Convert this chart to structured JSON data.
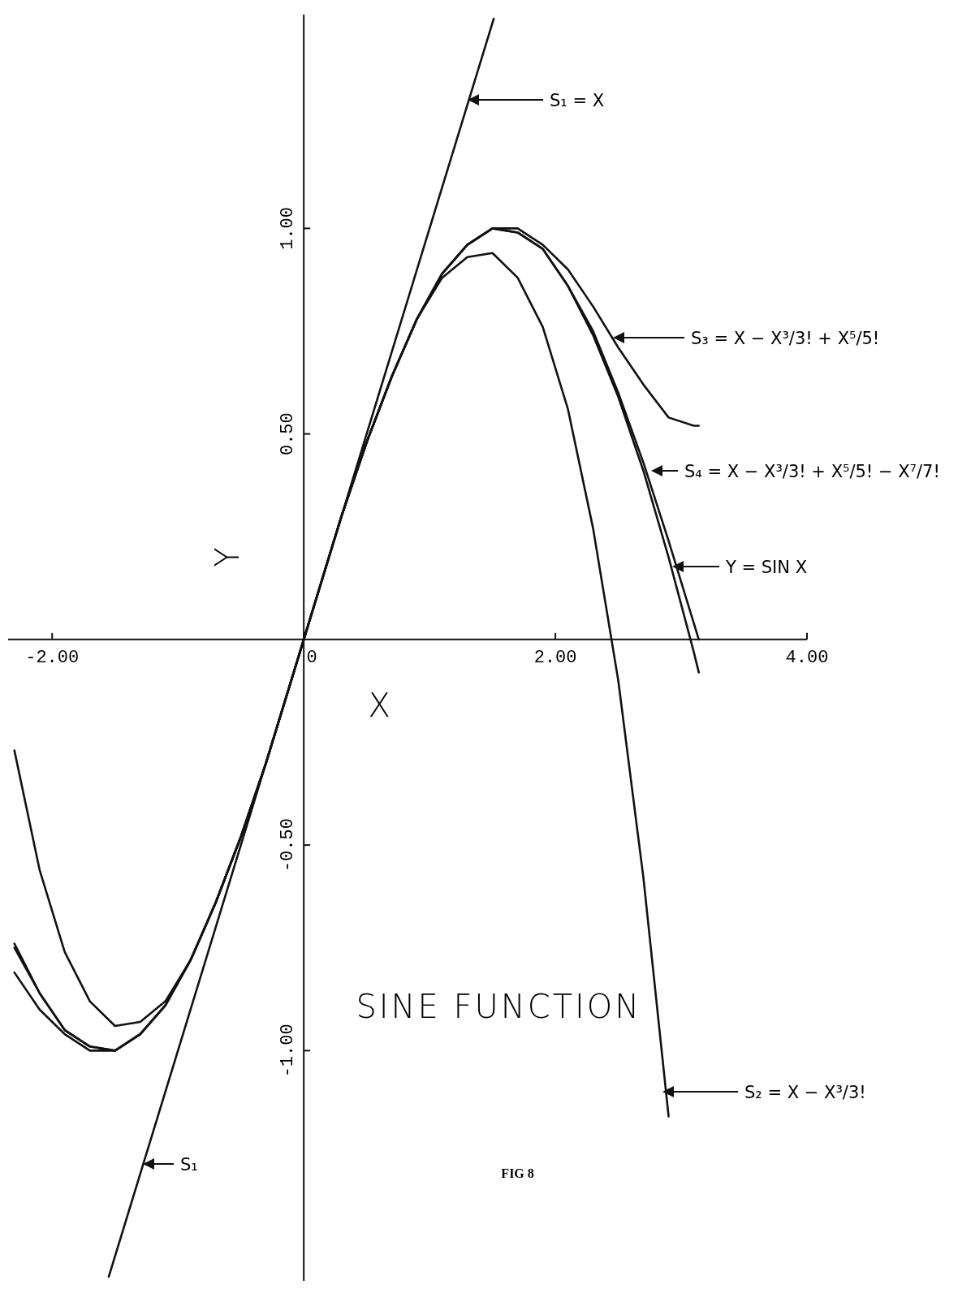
{
  "chart_data": {
    "type": "line",
    "title": "SINE FUNCTION",
    "xlabel": "X",
    "ylabel": "Y",
    "xlim": [
      -2.35,
      4
    ],
    "ylim": [
      -1.56,
      1.52
    ],
    "xticks": [
      {
        "value": -2,
        "label": "-2.00"
      },
      {
        "value": 0,
        "label": "0"
      },
      {
        "value": 2,
        "label": "2.00"
      },
      {
        "value": 4,
        "label": "4.00"
      }
    ],
    "yticks": [
      {
        "value": -1,
        "label": "-1.00"
      },
      {
        "value": -0.5,
        "label": "-0.50"
      },
      {
        "value": 0.5,
        "label": "0.50"
      },
      {
        "value": 1,
        "label": "1.00"
      }
    ],
    "grid": false,
    "marker": "none",
    "line_style": "solid",
    "series": [
      {
        "color": "#111111",
        "x": [
          -1.55,
          1.51
        ],
        "values": [
          -1.55,
          1.51
        ]
      },
      {
        "color": "#111111",
        "x": [
          -2.3,
          -2.1,
          -1.9,
          -1.7,
          -1.5,
          -1.3,
          -1.1,
          -0.9,
          -0.7,
          -0.5,
          -0.3,
          -0.1,
          0.1,
          0.3,
          0.5,
          0.7,
          0.9,
          1.1,
          1.3,
          1.5,
          1.7,
          1.9,
          2.1,
          2.3,
          2.5,
          2.7,
          2.9
        ],
        "values": [
          -0.27,
          -0.56,
          -0.76,
          -0.88,
          -0.94,
          -0.93,
          -0.88,
          -0.78,
          -0.64,
          -0.48,
          -0.3,
          -0.1,
          0.1,
          0.3,
          0.48,
          0.64,
          0.78,
          0.88,
          0.93,
          0.94,
          0.88,
          0.76,
          0.56,
          0.27,
          -0.1,
          -0.58,
          -1.16
        ]
      },
      {
        "color": "#111111",
        "x": [
          -2.3,
          -2.1,
          -1.9,
          -1.7,
          -1.5,
          -1.3,
          -1.1,
          -0.9,
          -0.7,
          -0.5,
          -0.3,
          -0.1,
          0.1,
          0.3,
          0.5,
          0.7,
          0.9,
          1.1,
          1.3,
          1.5,
          1.7,
          1.9,
          2.1,
          2.3,
          2.5,
          2.7,
          2.9,
          3.1,
          3.14
        ],
        "values": [
          -0.81,
          -0.9,
          -0.96,
          -1.0,
          -1.0,
          -0.96,
          -0.89,
          -0.78,
          -0.64,
          -0.48,
          -0.3,
          -0.1,
          0.1,
          0.3,
          0.48,
          0.64,
          0.78,
          0.89,
          0.96,
          1.0,
          1.0,
          0.96,
          0.9,
          0.81,
          0.71,
          0.62,
          0.54,
          0.52,
          0.52
        ]
      },
      {
        "color": "#111111",
        "x": [
          -2.3,
          -2.1,
          -1.9,
          -1.7,
          -1.5,
          -1.3,
          -1.1,
          -0.9,
          -0.7,
          -0.5,
          -0.3,
          -0.1,
          0.1,
          0.3,
          0.5,
          0.7,
          0.9,
          1.1,
          1.3,
          1.5,
          1.7,
          1.9,
          2.1,
          2.3,
          2.5,
          2.7,
          2.9,
          3.1,
          3.14
        ],
        "values": [
          -0.74,
          -0.86,
          -0.95,
          -0.99,
          -1.0,
          -0.96,
          -0.89,
          -0.78,
          -0.64,
          -0.48,
          -0.3,
          -0.1,
          0.1,
          0.3,
          0.48,
          0.64,
          0.78,
          0.89,
          0.96,
          1.0,
          0.99,
          0.95,
          0.86,
          0.74,
          0.59,
          0.41,
          0.2,
          -0.03,
          -0.08
        ]
      },
      {
        "color": "#111111",
        "x": [
          -2.3,
          -2.1,
          -1.9,
          -1.7,
          -1.5,
          -1.3,
          -1.1,
          -0.9,
          -0.7,
          -0.5,
          -0.3,
          -0.1,
          0.1,
          0.3,
          0.5,
          0.7,
          0.9,
          1.1,
          1.3,
          1.5,
          1.7,
          1.9,
          2.1,
          2.3,
          2.5,
          2.7,
          2.9,
          3.1,
          3.14
        ],
        "values": [
          -0.75,
          -0.86,
          -0.95,
          -0.99,
          -1.0,
          -0.96,
          -0.89,
          -0.78,
          -0.64,
          -0.48,
          -0.3,
          -0.1,
          0.1,
          0.3,
          0.48,
          0.64,
          0.78,
          0.89,
          0.96,
          1.0,
          0.99,
          0.95,
          0.86,
          0.75,
          0.6,
          0.43,
          0.24,
          0.04,
          0
        ]
      }
    ],
    "annotations": [
      "S₁ = X",
      "S₃ = X − X³/3! + X⁵/5!",
      "S₄ = X − X³/3! + X⁵/5! − X⁷/7!",
      "Y = SIN X",
      "S₂ = X − X³/3!",
      "S₁",
      "FIG 8"
    ]
  }
}
